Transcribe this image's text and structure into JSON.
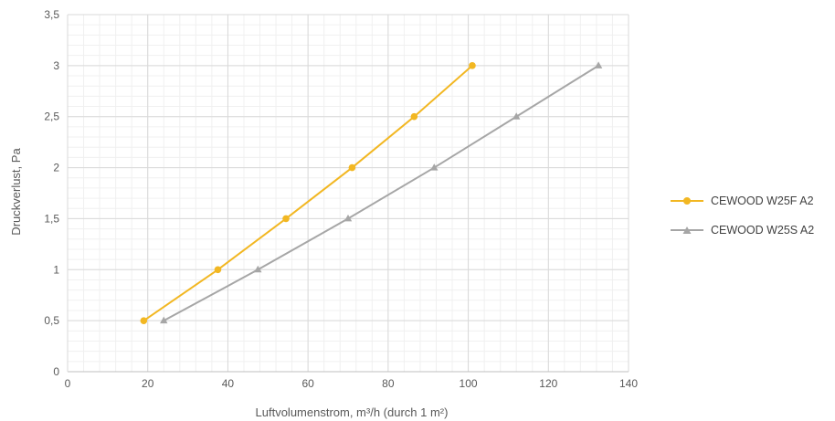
{
  "chart_data": {
    "type": "line",
    "xlabel": "Luftvolumenstrom, m³/h (durch 1 m²)",
    "ylabel": "Druckverlust, Pa",
    "xlim": [
      0,
      140
    ],
    "ylim": [
      0,
      3.5
    ],
    "x_ticks": [
      "0",
      "20",
      "40",
      "60",
      "80",
      "100",
      "120",
      "140"
    ],
    "y_ticks": [
      "0",
      "0,5",
      "1",
      "1,5",
      "2",
      "2,5",
      "3",
      "3,5"
    ],
    "grid": true,
    "legend_position": "right",
    "series": [
      {
        "name": "CEWOOD W25F A2",
        "color": "#f2b722",
        "marker": "circle",
        "points": [
          [
            19,
            0.5
          ],
          [
            37.5,
            1.0
          ],
          [
            54.5,
            1.5
          ],
          [
            71,
            2.0
          ],
          [
            86.5,
            2.5
          ],
          [
            101,
            3.0
          ]
        ]
      },
      {
        "name": "CEWOOD W25S A2",
        "color": "#a6a6a6",
        "marker": "triangle",
        "points": [
          [
            24,
            0.5
          ],
          [
            47.5,
            1.0
          ],
          [
            70,
            1.5
          ],
          [
            91.5,
            2.0
          ],
          [
            112,
            2.5
          ],
          [
            132.5,
            3.0
          ]
        ]
      }
    ]
  }
}
